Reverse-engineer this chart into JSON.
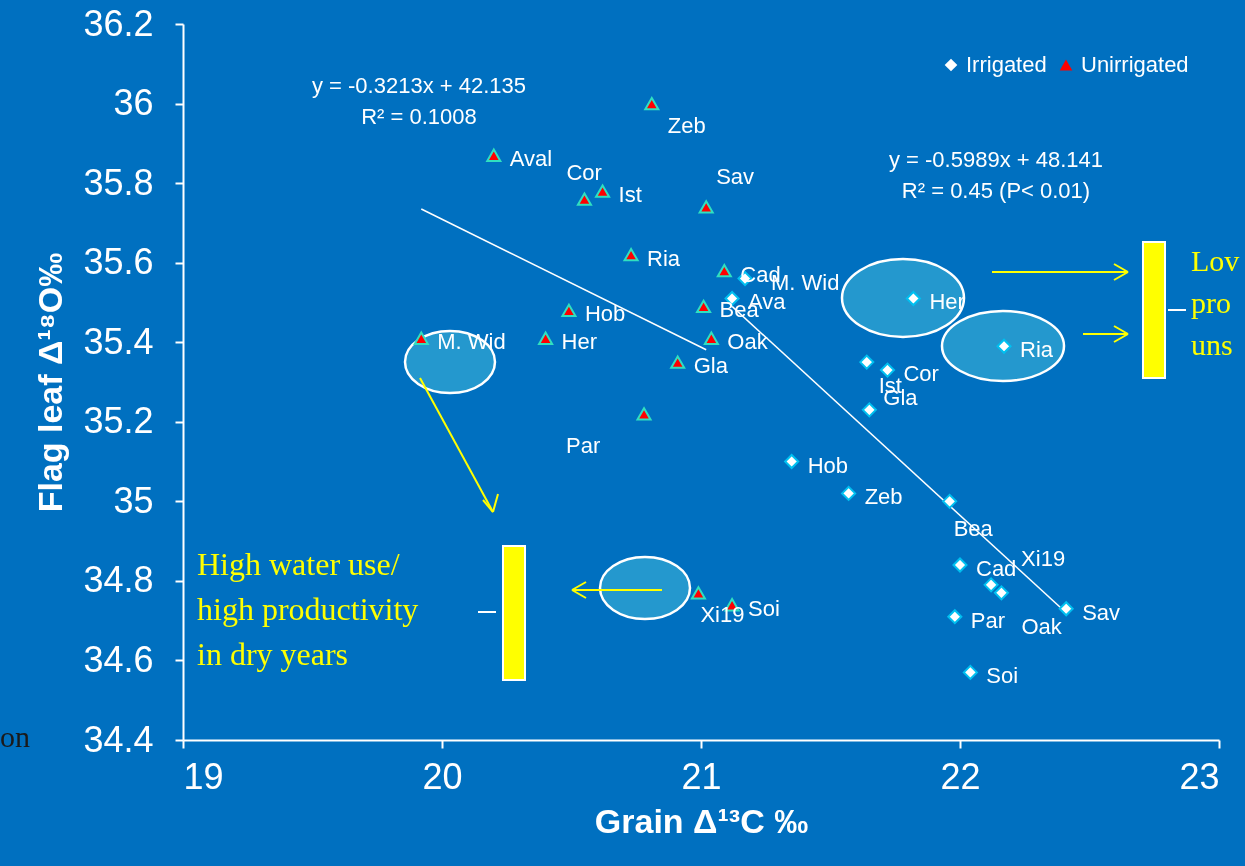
{
  "chart_data": {
    "type": "scatter",
    "xlabel": "Grain  Δ¹³C ‰",
    "ylabel": "Flag leaf  Δ¹⁸O‰",
    "xlim": [
      19,
      23
    ],
    "xticks": [
      19,
      20,
      21,
      22,
      23
    ],
    "ylim": [
      34.4,
      36.2
    ],
    "yticks": [
      34.4,
      34.6,
      34.8,
      35,
      35.2,
      35.4,
      35.6,
      35.8,
      36,
      36.2
    ],
    "grid": false,
    "legend": "top right",
    "series": [
      {
        "name": "Irrigated",
        "marker": "diamond",
        "color": "#ffffff",
        "x": [
          21.17,
          21.12,
          21.82,
          22.17,
          21.64,
          21.72,
          21.65,
          21.35,
          21.57,
          21.96,
          22.0,
          22.12,
          22.16,
          21.98,
          22.41,
          22.04
        ],
        "values": [
          35.56,
          35.51,
          35.51,
          35.39,
          35.35,
          35.33,
          35.23,
          35.1,
          35.02,
          35.0,
          34.84,
          34.79,
          34.77,
          34.71,
          34.73,
          34.57
        ]
      },
      {
        "name": "Unirrigated",
        "marker": "triangle",
        "color": "#ff0000",
        "x": [
          20.81,
          20.2,
          20.55,
          20.62,
          21.02,
          20.73,
          21.09,
          21.01,
          20.49,
          20.4,
          19.92,
          21.04,
          20.91,
          20.78,
          20.99,
          21.12
        ],
        "values": [
          36.0,
          35.87,
          35.76,
          35.78,
          35.74,
          35.62,
          35.58,
          35.49,
          35.48,
          35.41,
          35.41,
          35.41,
          35.35,
          35.22,
          34.77,
          34.74
        ]
      },
      {
        "type": "line",
        "color": "#ffffff",
        "x": [
          21.12,
          22.41
        ],
        "values": [
          35.49,
          34.72
        ]
      },
      {
        "type": "line",
        "color": "#ffffff",
        "x": [
          19.92,
          21.02
        ],
        "values": [
          35.735,
          35.381
        ]
      }
    ],
    "annotations": [
      "y = -0.3213x + 42.135\nR² = 0.1008",
      "y = -0.5989x + 48.141\nR² = 0.45 (P< 0.01)",
      "High water use/\nhigh productivity\nin dry years",
      "Lov\npro\nuns",
      "on",
      {
        "text": "M. Wid",
        "x": 21.17,
        "y": 35.56
      },
      {
        "text": "Ava",
        "x": 21.12,
        "y": 35.51
      },
      {
        "text": "Her",
        "x": 21.82,
        "y": 35.51
      },
      {
        "text": "Ria",
        "x": 22.17,
        "y": 35.39
      },
      {
        "text": "Ist",
        "x": 21.64,
        "y": 35.35
      },
      {
        "text": "Cor",
        "x": 21.72,
        "y": 35.33
      },
      {
        "text": "Gla",
        "x": 21.65,
        "y": 35.23
      },
      {
        "text": "Hob",
        "x": 21.35,
        "y": 35.1
      },
      {
        "text": "Zeb",
        "x": 21.57,
        "y": 35.02
      },
      {
        "text": "Bea",
        "x": 21.96,
        "y": 35.0
      },
      {
        "text": "Cad",
        "x": 22.0,
        "y": 34.84
      },
      {
        "text": "Xi19",
        "x": 22.12,
        "y": 34.79
      },
      {
        "text": "Oak",
        "x": 22.16,
        "y": 34.77
      },
      {
        "text": "Par",
        "x": 21.98,
        "y": 34.71
      },
      {
        "text": "Sav",
        "x": 22.41,
        "y": 34.73
      },
      {
        "text": "Soi",
        "x": 22.04,
        "y": 34.57
      },
      {
        "text": "Zeb",
        "x": 20.81,
        "y": 36.0
      },
      {
        "text": "Aval",
        "x": 20.2,
        "y": 35.87
      },
      {
        "text": "Cor",
        "x": 20.55,
        "y": 35.76
      },
      {
        "text": "Ist",
        "x": 20.62,
        "y": 35.78
      },
      {
        "text": "Sav",
        "x": 21.02,
        "y": 35.74
      },
      {
        "text": "Ria",
        "x": 20.73,
        "y": 35.62
      },
      {
        "text": "Cad",
        "x": 21.09,
        "y": 35.58
      },
      {
        "text": "Bea",
        "x": 21.01,
        "y": 35.49
      },
      {
        "text": "Hob",
        "x": 20.49,
        "y": 35.48
      },
      {
        "text": "Her",
        "x": 20.4,
        "y": 35.41
      },
      {
        "text": "M. Wid",
        "x": 19.92,
        "y": 35.41
      },
      {
        "text": "Oak",
        "x": 21.04,
        "y": 35.41
      },
      {
        "text": "Gla",
        "x": 20.91,
        "y": 35.35
      },
      {
        "text": "Par",
        "x": 20.78,
        "y": 35.22
      },
      {
        "text": "Xi19",
        "x": 20.99,
        "y": 34.77
      },
      {
        "text": "Soi",
        "x": 21.12,
        "y": 34.74
      }
    ]
  }
}
